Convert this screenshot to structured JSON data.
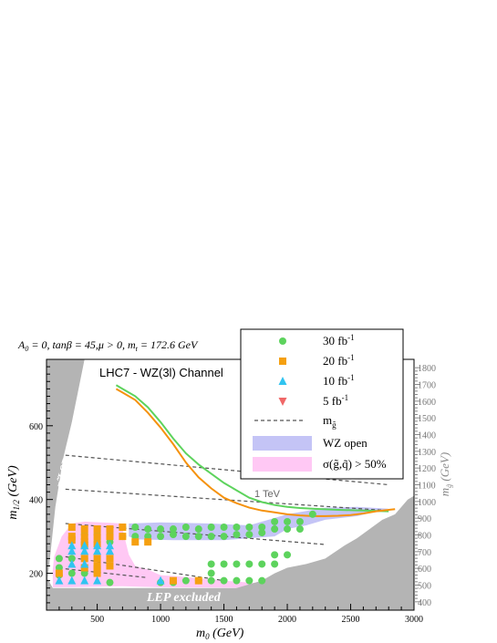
{
  "chart_data": {
    "type": "scatter",
    "header": "A",
    "header_sub": "0",
    "header_mid": " = 0, tanβ = 45,μ > 0, m",
    "header_sub2": "t",
    "header_end": " = 172.6 GeV",
    "title": "LHC7 - WZ(3l) Channel",
    "xlabel": "m",
    "xlabel_sub": "0",
    "xlabel_unit": " (GeV)",
    "ylabel": "m",
    "ylabel_sub": "1/2",
    "ylabel_unit": " (GeV)",
    "y2label": "m",
    "y2label_sub": "g̃",
    "y2label_unit": " (GeV)",
    "xlim": [
      100,
      3000
    ],
    "ylim": [
      100,
      780
    ],
    "y2lim": [
      350,
      1850
    ],
    "x_ticks": [
      500,
      1000,
      1500,
      2000,
      2500,
      3000
    ],
    "y_ticks": [
      200,
      400,
      600
    ],
    "y2_ticks": [
      400,
      500,
      600,
      700,
      800,
      900,
      1000,
      1100,
      1200,
      1300,
      1400,
      1500,
      1600,
      1700,
      1800
    ],
    "annotations": {
      "stau_lsp": "τ̃ LSP",
      "lep_excluded": "LEP excluded",
      "one_tev": "1 TeV"
    },
    "legend": {
      "placement": "top-right",
      "entries": [
        {
          "label": "30 fb",
          "sup": "-1",
          "marker": "circle",
          "color": "#5dd35d"
        },
        {
          "label": "20 fb",
          "sup": "-1",
          "marker": "square",
          "color": "#f5a010"
        },
        {
          "label": "10 fb",
          "sup": "-1",
          "marker": "triangle-up",
          "color": "#30c4f0"
        },
        {
          "label": "5 fb",
          "sup": "-1",
          "marker": "triangle-down",
          "color": "#f06868"
        },
        {
          "label": "m",
          "sub": "g̃",
          "marker": "dashed-line",
          "color": "#555555"
        },
        {
          "label": "WZ open",
          "marker": "band",
          "color": "#c4c4f6"
        },
        {
          "label": "σ(g̃,q̃) > 50%",
          "marker": "band",
          "color": "#ffc8f4"
        }
      ]
    },
    "colors": {
      "excluded": "#b4b4b4",
      "green_curve": "#5dd35d",
      "orange_curve": "#f5920e",
      "wz_band": "#c4c4f6",
      "sigma_band": "#ffc8f4"
    },
    "series": [
      {
        "name": "30 fb-1",
        "marker": "circle",
        "color": "#5dd35d",
        "points": [
          [
            200,
            240
          ],
          [
            200,
            215
          ],
          [
            200,
            195
          ],
          [
            300,
            240
          ],
          [
            300,
            200
          ],
          [
            400,
            200
          ],
          [
            400,
            240
          ],
          [
            500,
            200
          ],
          [
            500,
            220
          ],
          [
            600,
            175
          ],
          [
            600,
            240
          ],
          [
            400,
            285
          ],
          [
            400,
            305
          ],
          [
            500,
            285
          ],
          [
            500,
            305
          ],
          [
            600,
            285
          ],
          [
            600,
            305
          ],
          [
            700,
            300
          ],
          [
            700,
            325
          ],
          [
            800,
            300
          ],
          [
            800,
            325
          ],
          [
            900,
            300
          ],
          [
            900,
            320
          ],
          [
            1000,
            300
          ],
          [
            1000,
            320
          ],
          [
            1100,
            305
          ],
          [
            1100,
            320
          ],
          [
            1200,
            300
          ],
          [
            1200,
            325
          ],
          [
            1300,
            300
          ],
          [
            1300,
            320
          ],
          [
            1400,
            300
          ],
          [
            1400,
            325
          ],
          [
            1500,
            300
          ],
          [
            1500,
            325
          ],
          [
            1600,
            305
          ],
          [
            1600,
            325
          ],
          [
            1700,
            305
          ],
          [
            1700,
            325
          ],
          [
            1800,
            310
          ],
          [
            1800,
            325
          ],
          [
            1900,
            320
          ],
          [
            1900,
            340
          ],
          [
            2000,
            320
          ],
          [
            2000,
            340
          ],
          [
            2100,
            320
          ],
          [
            2100,
            340
          ],
          [
            2200,
            360
          ],
          [
            1000,
            175
          ],
          [
            1100,
            175
          ],
          [
            1200,
            180
          ],
          [
            1300,
            180
          ],
          [
            1400,
            180
          ],
          [
            1400,
            200
          ],
          [
            1400,
            225
          ],
          [
            1500,
            180
          ],
          [
            1500,
            225
          ],
          [
            1600,
            180
          ],
          [
            1600,
            225
          ],
          [
            1700,
            180
          ],
          [
            1700,
            225
          ],
          [
            1800,
            180
          ],
          [
            1800,
            225
          ],
          [
            1900,
            225
          ],
          [
            1900,
            250
          ],
          [
            2000,
            250
          ]
        ]
      },
      {
        "name": "20 fb-1",
        "marker": "square",
        "color": "#f5a010",
        "points": [
          [
            300,
            325
          ],
          [
            300,
            300
          ],
          [
            300,
            290
          ],
          [
            400,
            320
          ],
          [
            400,
            300
          ],
          [
            400,
            285
          ],
          [
            400,
            275
          ],
          [
            500,
            320
          ],
          [
            500,
            300
          ],
          [
            500,
            280
          ],
          [
            600,
            320
          ],
          [
            600,
            300
          ],
          [
            700,
            300
          ],
          [
            700,
            325
          ],
          [
            800,
            285
          ],
          [
            900,
            285
          ],
          [
            400,
            240
          ],
          [
            400,
            215
          ],
          [
            500,
            240
          ],
          [
            500,
            220
          ],
          [
            500,
            210
          ],
          [
            600,
            220
          ],
          [
            600,
            240
          ],
          [
            200,
            200
          ],
          [
            500,
            200
          ],
          [
            1100,
            180
          ],
          [
            1300,
            180
          ]
        ]
      },
      {
        "name": "10 fb-1",
        "marker": "triangle-up",
        "color": "#30c4f0",
        "points": [
          [
            300,
            275
          ],
          [
            300,
            260
          ],
          [
            300,
            225
          ],
          [
            400,
            275
          ],
          [
            400,
            260
          ],
          [
            400,
            225
          ],
          [
            500,
            260
          ],
          [
            500,
            275
          ],
          [
            600,
            275
          ],
          [
            600,
            260
          ],
          [
            300,
            180
          ],
          [
            400,
            180
          ],
          [
            500,
            180
          ],
          [
            1000,
            180
          ],
          [
            200,
            180
          ]
        ]
      },
      {
        "name": "5 fb-1",
        "marker": "triangle-down",
        "color": "#f06868",
        "points": []
      }
    ],
    "contours": {
      "green_curve": [
        [
          650,
          710
        ],
        [
          700,
          700
        ],
        [
          800,
          680
        ],
        [
          900,
          650
        ],
        [
          1000,
          610
        ],
        [
          1100,
          565
        ],
        [
          1200,
          525
        ],
        [
          1300,
          495
        ],
        [
          1400,
          470
        ],
        [
          1500,
          445
        ],
        [
          1600,
          425
        ],
        [
          1700,
          405
        ],
        [
          1800,
          393
        ],
        [
          1900,
          385
        ],
        [
          2000,
          380
        ],
        [
          2100,
          377
        ],
        [
          2200,
          375
        ],
        [
          2400,
          372
        ],
        [
          2600,
          370
        ],
        [
          2800,
          368
        ]
      ],
      "orange_curve": [
        [
          650,
          700
        ],
        [
          700,
          690
        ],
        [
          800,
          670
        ],
        [
          900,
          635
        ],
        [
          1000,
          595
        ],
        [
          1100,
          550
        ],
        [
          1200,
          500
        ],
        [
          1300,
          460
        ],
        [
          1400,
          430
        ],
        [
          1500,
          405
        ],
        [
          1600,
          390
        ],
        [
          1700,
          378
        ],
        [
          1800,
          370
        ],
        [
          1900,
          365
        ],
        [
          2000,
          360
        ],
        [
          2100,
          357
        ],
        [
          2200,
          355
        ],
        [
          2300,
          355
        ],
        [
          2400,
          356
        ],
        [
          2500,
          358
        ],
        [
          2600,
          362
        ],
        [
          2700,
          368
        ],
        [
          2800,
          372
        ],
        [
          2850,
          374
        ]
      ],
      "mgluino_lines": [
        {
          "points": [
            [
              250,
              520
            ],
            [
              2800,
              440
            ]
          ]
        },
        {
          "points": [
            [
              250,
              428
            ],
            [
              2800,
              370
            ]
          ]
        },
        {
          "points": [
            [
              250,
              335
            ],
            [
              2300,
              278
            ]
          ]
        },
        {
          "points": [
            [
              250,
              245
            ],
            [
              1500,
              180
            ]
          ]
        },
        {
          "points": [
            [
              250,
              212
            ],
            [
              900,
              188
            ]
          ]
        }
      ],
      "stau_region": [
        [
          100,
          780
        ],
        [
          400,
          780
        ],
        [
          300,
          610
        ],
        [
          230,
          510
        ],
        [
          170,
          380
        ],
        [
          130,
          250
        ],
        [
          100,
          160
        ]
      ],
      "lep_region": [
        [
          100,
          100
        ],
        [
          100,
          190
        ],
        [
          150,
          160
        ],
        [
          3000,
          160
        ],
        [
          3000,
          100
        ]
      ],
      "bottom_right_region": [
        [
          1200,
          100
        ],
        [
          1400,
          130
        ],
        [
          1600,
          160
        ],
        [
          1800,
          180
        ],
        [
          1900,
          200
        ],
        [
          2000,
          215
        ],
        [
          2150,
          225
        ],
        [
          2300,
          240
        ],
        [
          2450,
          275
        ],
        [
          2550,
          295
        ],
        [
          2650,
          320
        ],
        [
          2750,
          345
        ],
        [
          2850,
          360
        ],
        [
          2950,
          400
        ],
        [
          3000,
          410
        ],
        [
          3000,
          100
        ]
      ],
      "wz_band": [
        [
          750,
          335
        ],
        [
          1000,
          338
        ],
        [
          1400,
          335
        ],
        [
          1700,
          330
        ],
        [
          2000,
          360
        ],
        [
          2300,
          378
        ],
        [
          2550,
          380
        ],
        [
          2800,
          375
        ],
        [
          2550,
          355
        ],
        [
          2300,
          345
        ],
        [
          2150,
          330
        ],
        [
          2000,
          320
        ],
        [
          1900,
          300
        ],
        [
          1700,
          295
        ],
        [
          1500,
          290
        ],
        [
          1100,
          290
        ],
        [
          800,
          292
        ],
        [
          750,
          300
        ]
      ],
      "sigma_band": [
        [
          160,
          245
        ],
        [
          220,
          300
        ],
        [
          300,
          335
        ],
        [
          400,
          340
        ],
        [
          700,
          335
        ],
        [
          700,
          320
        ],
        [
          750,
          250
        ],
        [
          800,
          220
        ],
        [
          900,
          210
        ],
        [
          1000,
          195
        ],
        [
          1200,
          190
        ],
        [
          1500,
          180
        ],
        [
          1700,
          175
        ],
        [
          1900,
          170
        ],
        [
          1900,
          160
        ],
        [
          1000,
          162
        ],
        [
          700,
          165
        ],
        [
          300,
          162
        ],
        [
          150,
          162
        ],
        [
          150,
          210
        ]
      ]
    }
  }
}
